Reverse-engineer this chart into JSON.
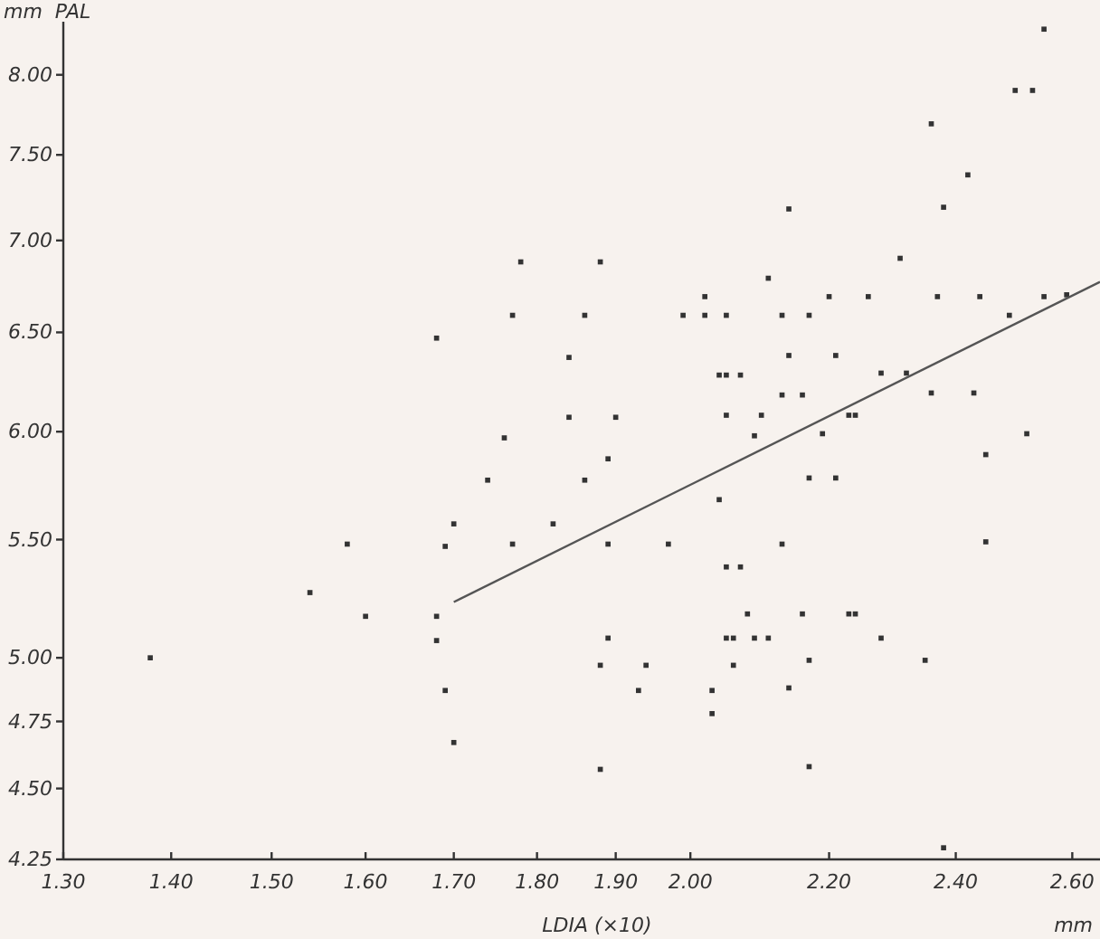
{
  "chart_data": {
    "type": "scatter",
    "xlabel": "LDIA (×10)",
    "ylabel": "mm  PAL",
    "annotations": [
      "mm"
    ],
    "log": "xy",
    "grid": false,
    "xlim": [
      1.3,
      2.65
    ],
    "ylim": [
      4.25,
      8.35
    ],
    "xticks": [
      {
        "value": 1.3,
        "label": "1.30"
      },
      {
        "value": 1.4,
        "label": "1.40"
      },
      {
        "value": 1.5,
        "label": "1.50"
      },
      {
        "value": 1.6,
        "label": "1.60"
      },
      {
        "value": 1.7,
        "label": "1.70"
      },
      {
        "value": 1.8,
        "label": "1.80"
      },
      {
        "value": 1.9,
        "label": "1.90"
      },
      {
        "value": 2.0,
        "label": "2.00"
      },
      {
        "value": 2.2,
        "label": "2.20"
      },
      {
        "value": 2.4,
        "label": "2.40"
      },
      {
        "value": 2.6,
        "label": "2.60"
      }
    ],
    "yticks": [
      {
        "value": 4.25,
        "label": "4.25"
      },
      {
        "value": 4.5,
        "label": "4.50"
      },
      {
        "value": 4.75,
        "label": "4.75"
      },
      {
        "value": 5.0,
        "label": "5.00"
      },
      {
        "value": 5.5,
        "label": "5.50"
      },
      {
        "value": 6.0,
        "label": "6.00"
      },
      {
        "value": 6.5,
        "label": "6.50"
      },
      {
        "value": 7.0,
        "label": "7.00"
      },
      {
        "value": 7.5,
        "label": "7.50"
      },
      {
        "value": 8.0,
        "label": "8.00"
      }
    ],
    "series": [
      {
        "marker": "square",
        "color": "#333333",
        "x": [
          1.38,
          1.54,
          1.58,
          1.6,
          1.78,
          1.88,
          1.77,
          1.86,
          1.68,
          1.84,
          1.84,
          1.9,
          1.76,
          1.89,
          1.74,
          1.86,
          1.7,
          1.82,
          1.69,
          1.77,
          1.89,
          1.97,
          1.68,
          1.68,
          1.89,
          1.69,
          1.88,
          1.94,
          1.93,
          1.7,
          1.88,
          2.02,
          1.99,
          2.02,
          2.05,
          2.04,
          2.05,
          2.05,
          2.04,
          2.05,
          2.07,
          2.05,
          2.06,
          2.06,
          2.03,
          2.03,
          2.55,
          2.5,
          2.53,
          2.36,
          2.42,
          2.38,
          2.14,
          2.31,
          2.11,
          2.2,
          2.26,
          2.37,
          2.44,
          2.55,
          2.59,
          2.13,
          2.17,
          2.49,
          2.07,
          2.14,
          2.21,
          2.13,
          2.16,
          2.28,
          2.32,
          2.36,
          2.43,
          2.1,
          2.23,
          2.24,
          2.09,
          2.19,
          2.52,
          2.45,
          2.17,
          2.21,
          2.13,
          2.45,
          2.08,
          2.16,
          2.23,
          2.24,
          2.09,
          2.11,
          2.28,
          2.17,
          2.35,
          2.14,
          2.17,
          2.38
        ],
        "values": [
          5.0,
          5.27,
          5.48,
          5.17,
          6.88,
          6.88,
          6.59,
          6.59,
          6.47,
          6.37,
          6.07,
          6.07,
          5.97,
          5.87,
          5.77,
          5.77,
          5.57,
          5.57,
          5.47,
          5.48,
          5.48,
          5.48,
          5.17,
          5.07,
          5.08,
          4.87,
          4.97,
          4.97,
          4.87,
          4.67,
          4.57,
          6.69,
          6.59,
          6.59,
          6.59,
          6.28,
          6.28,
          6.08,
          5.68,
          5.38,
          5.38,
          5.08,
          5.08,
          4.97,
          4.87,
          4.78,
          8.3,
          7.9,
          7.9,
          7.69,
          7.38,
          7.19,
          7.18,
          6.9,
          6.79,
          6.69,
          6.69,
          6.69,
          6.69,
          6.69,
          6.7,
          6.59,
          6.59,
          6.59,
          6.28,
          6.38,
          6.38,
          6.18,
          6.18,
          6.29,
          6.29,
          6.19,
          6.19,
          6.08,
          6.08,
          6.08,
          5.98,
          5.99,
          5.99,
          5.89,
          5.78,
          5.78,
          5.48,
          5.49,
          5.18,
          5.18,
          5.18,
          5.18,
          5.08,
          5.08,
          5.08,
          4.99,
          4.99,
          4.88,
          4.58,
          4.29
        ]
      },
      {
        "type": "line",
        "color": "#555555",
        "x": [
          1.7,
          2.65
        ],
        "values": [
          5.23,
          6.77
        ]
      }
    ]
  }
}
